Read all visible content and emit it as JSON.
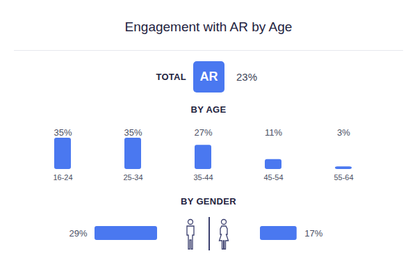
{
  "chart_data": [
    {
      "type": "kpi",
      "title": "Engagement with AR by Age",
      "subtitle": "TOTAL",
      "categories": [
        "AR"
      ],
      "values": [
        23
      ],
      "value_labels": [
        "23%"
      ],
      "data_labels": true,
      "color": "#4a78f0"
    },
    {
      "type": "bar",
      "title": "BY AGE",
      "categories": [
        "16-24",
        "25-34",
        "35-44",
        "45-54",
        "55-64"
      ],
      "values": [
        35,
        35,
        27,
        11,
        3
      ],
      "value_labels": [
        "35%",
        "35%",
        "27%",
        "11%",
        "3%"
      ],
      "data_labels": true,
      "ylim": [
        0,
        35
      ],
      "tick_labels": "x",
      "color": "#4a78f0"
    },
    {
      "type": "bar",
      "title": "BY GENDER",
      "orientation": "horizontal",
      "categories": [
        null,
        null
      ],
      "values": [
        29,
        17
      ],
      "value_labels": [
        "29%",
        "17%"
      ],
      "data_labels": true,
      "xlim": [
        0,
        29
      ],
      "tick_labels": false,
      "color": "#4a78f0"
    }
  ]
}
